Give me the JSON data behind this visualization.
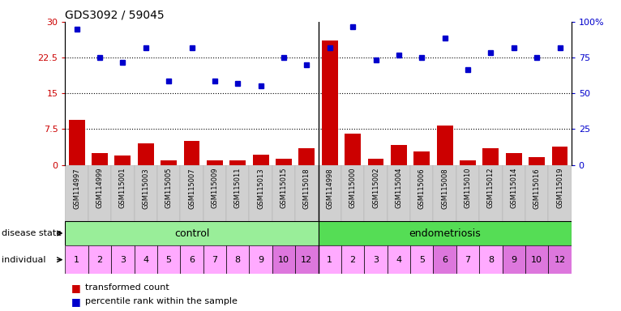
{
  "title": "GDS3092 / 59045",
  "samples": [
    "GSM114997",
    "GSM114999",
    "GSM115001",
    "GSM115003",
    "GSM115005",
    "GSM115007",
    "GSM115009",
    "GSM115011",
    "GSM115013",
    "GSM115015",
    "GSM115018",
    "GSM114998",
    "GSM115000",
    "GSM115002",
    "GSM115004",
    "GSM115006",
    "GSM115008",
    "GSM115010",
    "GSM115012",
    "GSM115014",
    "GSM115016",
    "GSM115019"
  ],
  "bar_values": [
    9.5,
    2.5,
    2.0,
    4.5,
    1.0,
    5.0,
    1.0,
    0.9,
    2.2,
    1.2,
    3.5,
    26.0,
    6.5,
    1.3,
    4.2,
    2.8,
    8.2,
    1.0,
    3.5,
    2.4,
    1.7,
    3.8
  ],
  "dot_values": [
    28.5,
    22.5,
    21.5,
    24.5,
    17.5,
    24.5,
    17.5,
    17.0,
    16.5,
    22.5,
    21.0,
    24.5,
    29.0,
    22.0,
    23.0,
    22.5,
    26.5,
    20.0,
    23.5,
    24.5,
    22.5,
    24.5
  ],
  "individuals": [
    "1",
    "2",
    "3",
    "4",
    "5",
    "6",
    "7",
    "8",
    "9",
    "10",
    "12",
    "1",
    "2",
    "3",
    "4",
    "5",
    "6",
    "7",
    "8",
    "9",
    "10",
    "12"
  ],
  "disease_state_control_count": 11,
  "disease_state_endo_count": 11,
  "bar_color": "#cc0000",
  "dot_color": "#0000cc",
  "control_color": "#99ee99",
  "endo_color": "#55dd55",
  "ind_colors": [
    "#ffaaff",
    "#ffaaff",
    "#ffaaff",
    "#ffaaff",
    "#ffaaff",
    "#ffaaff",
    "#ffaaff",
    "#ffaaff",
    "#ffaaff",
    "#dd77dd",
    "#dd77dd",
    "#ffaaff",
    "#ffaaff",
    "#ffaaff",
    "#ffaaff",
    "#ffaaff",
    "#dd77dd",
    "#ffaaff",
    "#ffaaff",
    "#dd77dd",
    "#dd77dd",
    "#dd77dd"
  ],
  "y_left_ticks": [
    0,
    7.5,
    15,
    22.5,
    30
  ],
  "y_right_ticks": [
    0,
    25,
    50,
    75,
    100
  ],
  "hlines": [
    7.5,
    15.0,
    22.5
  ],
  "left_tick_labels": [
    "0",
    "7.5",
    "15",
    "22.5",
    "30"
  ],
  "right_tick_labels": [
    "0",
    "25",
    "50",
    "75",
    "100%"
  ]
}
